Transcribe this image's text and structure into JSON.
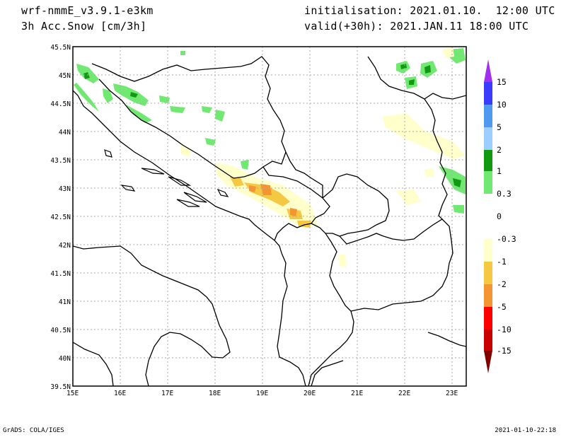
{
  "header": {
    "model": "wrf-nmmE_v3.9.1-e3km",
    "field": "3h Acc.Snow [cm/3h]",
    "init": "initialisation: 2021.01.10.  12:00 UTC",
    "valid": "valid(+30h): 2021.JAN.11 18:00 UTC"
  },
  "footer": {
    "credit": "GrADS: COLA/IGES",
    "timestamp": "2021-01-10-22:18"
  },
  "axes": {
    "lon_labels": [
      "15E",
      "16E",
      "17E",
      "18E",
      "19E",
      "20E",
      "21E",
      "22E",
      "23E"
    ],
    "lat_labels": [
      "45.5N",
      "45N",
      "44.5N",
      "44N",
      "43.5N",
      "43N",
      "42.5N",
      "42N",
      "41.5N",
      "41N",
      "40.5N",
      "40N",
      "39.5N"
    ]
  },
  "colorbar": {
    "labels": [
      "15",
      "10",
      "5",
      "2",
      "1",
      "0.3",
      "0",
      "-0.3",
      "-1",
      "-2",
      "-5",
      "-10",
      "-15"
    ],
    "colors": [
      "#a02ff0",
      "#3b3bff",
      "#4f9af0",
      "#9ccfff",
      "#119a11",
      "#71e871",
      "#ffffff",
      "#ffffcc",
      "#f5c842",
      "#f59532",
      "#ff0000",
      "#c80000",
      "#820000"
    ]
  }
}
